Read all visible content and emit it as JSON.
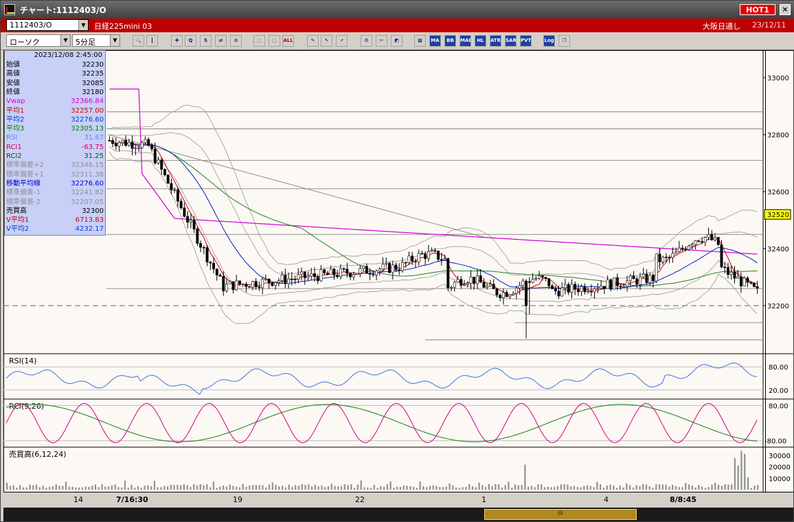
{
  "window": {
    "title": "チャート:1112403/O",
    "hot_label": "HOT1",
    "close_label": "×"
  },
  "infobar": {
    "symbol_code": "1112403/O",
    "instrument": "日経225mini 03",
    "exchange": "大阪日通し",
    "date": "23/12/11"
  },
  "toolbar": {
    "chart_type": "ローソク",
    "interval": "5分足",
    "buttons": [
      {
        "name": "zoom-icon",
        "label": "🔍"
      },
      {
        "name": "bar-width-icon",
        "label": "┃"
      },
      {
        "name": "cross-icon",
        "label": "✚"
      },
      {
        "name": "magnify-icon",
        "label": "Q"
      },
      {
        "name": "scale-icon",
        "label": "⇅"
      },
      {
        "name": "compare-icon",
        "label": "⇄"
      },
      {
        "name": "disabled-icon",
        "label": "⊘"
      },
      {
        "name": "candle-icon",
        "label": "⬚"
      },
      {
        "name": "candle-alt-icon",
        "label": "⬚"
      },
      {
        "name": "all-button",
        "label": "ALL"
      },
      {
        "name": "pen-icon",
        "label": "✎"
      },
      {
        "name": "pointer-icon",
        "label": "↖"
      },
      {
        "name": "arrow-icon",
        "label": "➚"
      },
      {
        "name": "settings-icon",
        "label": "⚙"
      },
      {
        "name": "tools-icon",
        "label": "✂"
      },
      {
        "name": "color-icon",
        "label": "◩"
      },
      {
        "name": "table-icon",
        "label": "▦"
      },
      {
        "name": "ma-button",
        "label": "MA"
      },
      {
        "name": "bb-button",
        "label": "BB"
      },
      {
        "name": "mae-button",
        "label": "MAE"
      },
      {
        "name": "hl-button",
        "label": "HL"
      },
      {
        "name": "atr-button",
        "label": "ATR"
      },
      {
        "name": "sar-button",
        "label": "SAR"
      },
      {
        "name": "pvt-button",
        "label": "PVT"
      },
      {
        "name": "log-button",
        "label": "Log"
      },
      {
        "name": "window-icon",
        "label": "❐"
      }
    ]
  },
  "data_panel": {
    "datetime": "2023/12/08 2:45:00",
    "rows": [
      {
        "label": "始値",
        "value": "32230",
        "color": "#000000"
      },
      {
        "label": "高値",
        "value": "32235",
        "color": "#000000"
      },
      {
        "label": "安値",
        "value": "32085",
        "color": "#000000"
      },
      {
        "label": "終値",
        "value": "32180",
        "color": "#000000"
      },
      {
        "label": "Vwap",
        "value": "32366.84",
        "color": "#d000d0"
      },
      {
        "label": "平均1",
        "value": "32257.00",
        "color": "#d00000"
      },
      {
        "label": "平均2",
        "value": "32276.60",
        "color": "#0040d0"
      },
      {
        "label": "平均3",
        "value": "32305.13",
        "color": "#008000"
      },
      {
        "label": "RSI",
        "value": "31.67",
        "color": "#6080ff"
      },
      {
        "label": "RCI1",
        "value": "-63.75",
        "color": "#d00060"
      },
      {
        "label": "RCI2",
        "value": "31.25",
        "color": "#006000"
      },
      {
        "label": "標準偏差+2",
        "value": "32346.15",
        "color": "#909090"
      },
      {
        "label": "標準偏差+1",
        "value": "32311.38",
        "color": "#909090"
      },
      {
        "label": "移動平均線",
        "value": "32276.60",
        "color": "#0000c0"
      },
      {
        "label": "標準偏差-1",
        "value": "32241.82",
        "color": "#909090"
      },
      {
        "label": "標準偏差-2",
        "value": "32207.05",
        "color": "#909090"
      },
      {
        "label": "売買高",
        "value": "32300",
        "color": "#000000"
      },
      {
        "label": "V平均1",
        "value": "6713.83",
        "color": "#d00000"
      },
      {
        "label": "V平均2",
        "value": "4232.17",
        "color": "#0040d0"
      }
    ]
  },
  "price_axis": {
    "ticks": [
      "33000",
      "32800",
      "32600",
      "32400",
      "32200"
    ],
    "current_price": "32520"
  },
  "rsi_panel": {
    "label": "RSI(14)",
    "ticks": [
      "80.00",
      "20.00"
    ]
  },
  "rci_panel": {
    "label": "RCI(9,26)",
    "ticks": [
      "80.00",
      "-80.00"
    ]
  },
  "volume_panel": {
    "label": "売買高(6,12,24)",
    "ticks": [
      "30000",
      "20000",
      "10000"
    ]
  },
  "xaxis": {
    "ticks": [
      {
        "label": "14",
        "bold": false
      },
      {
        "label": "7/16:30",
        "bold": true
      },
      {
        "label": "19",
        "bold": false
      },
      {
        "label": "22",
        "bold": false
      },
      {
        "label": "1",
        "bold": false
      },
      {
        "label": "4",
        "bold": false
      },
      {
        "label": "8/8:45",
        "bold": true
      }
    ]
  },
  "scrollbar": {
    "thumb_label": "III"
  },
  "colors": {
    "up_candle": "#ffffff",
    "down_candle": "#000000",
    "ma_short": "#d00000",
    "ma_mid": "#0020c0",
    "ma_long": "#208020",
    "vwap": "#d000d0",
    "bands": "#a0a0a0",
    "rsi": "#4070e0",
    "rci_fast": "#d00080",
    "rci_slow": "#108010"
  }
}
